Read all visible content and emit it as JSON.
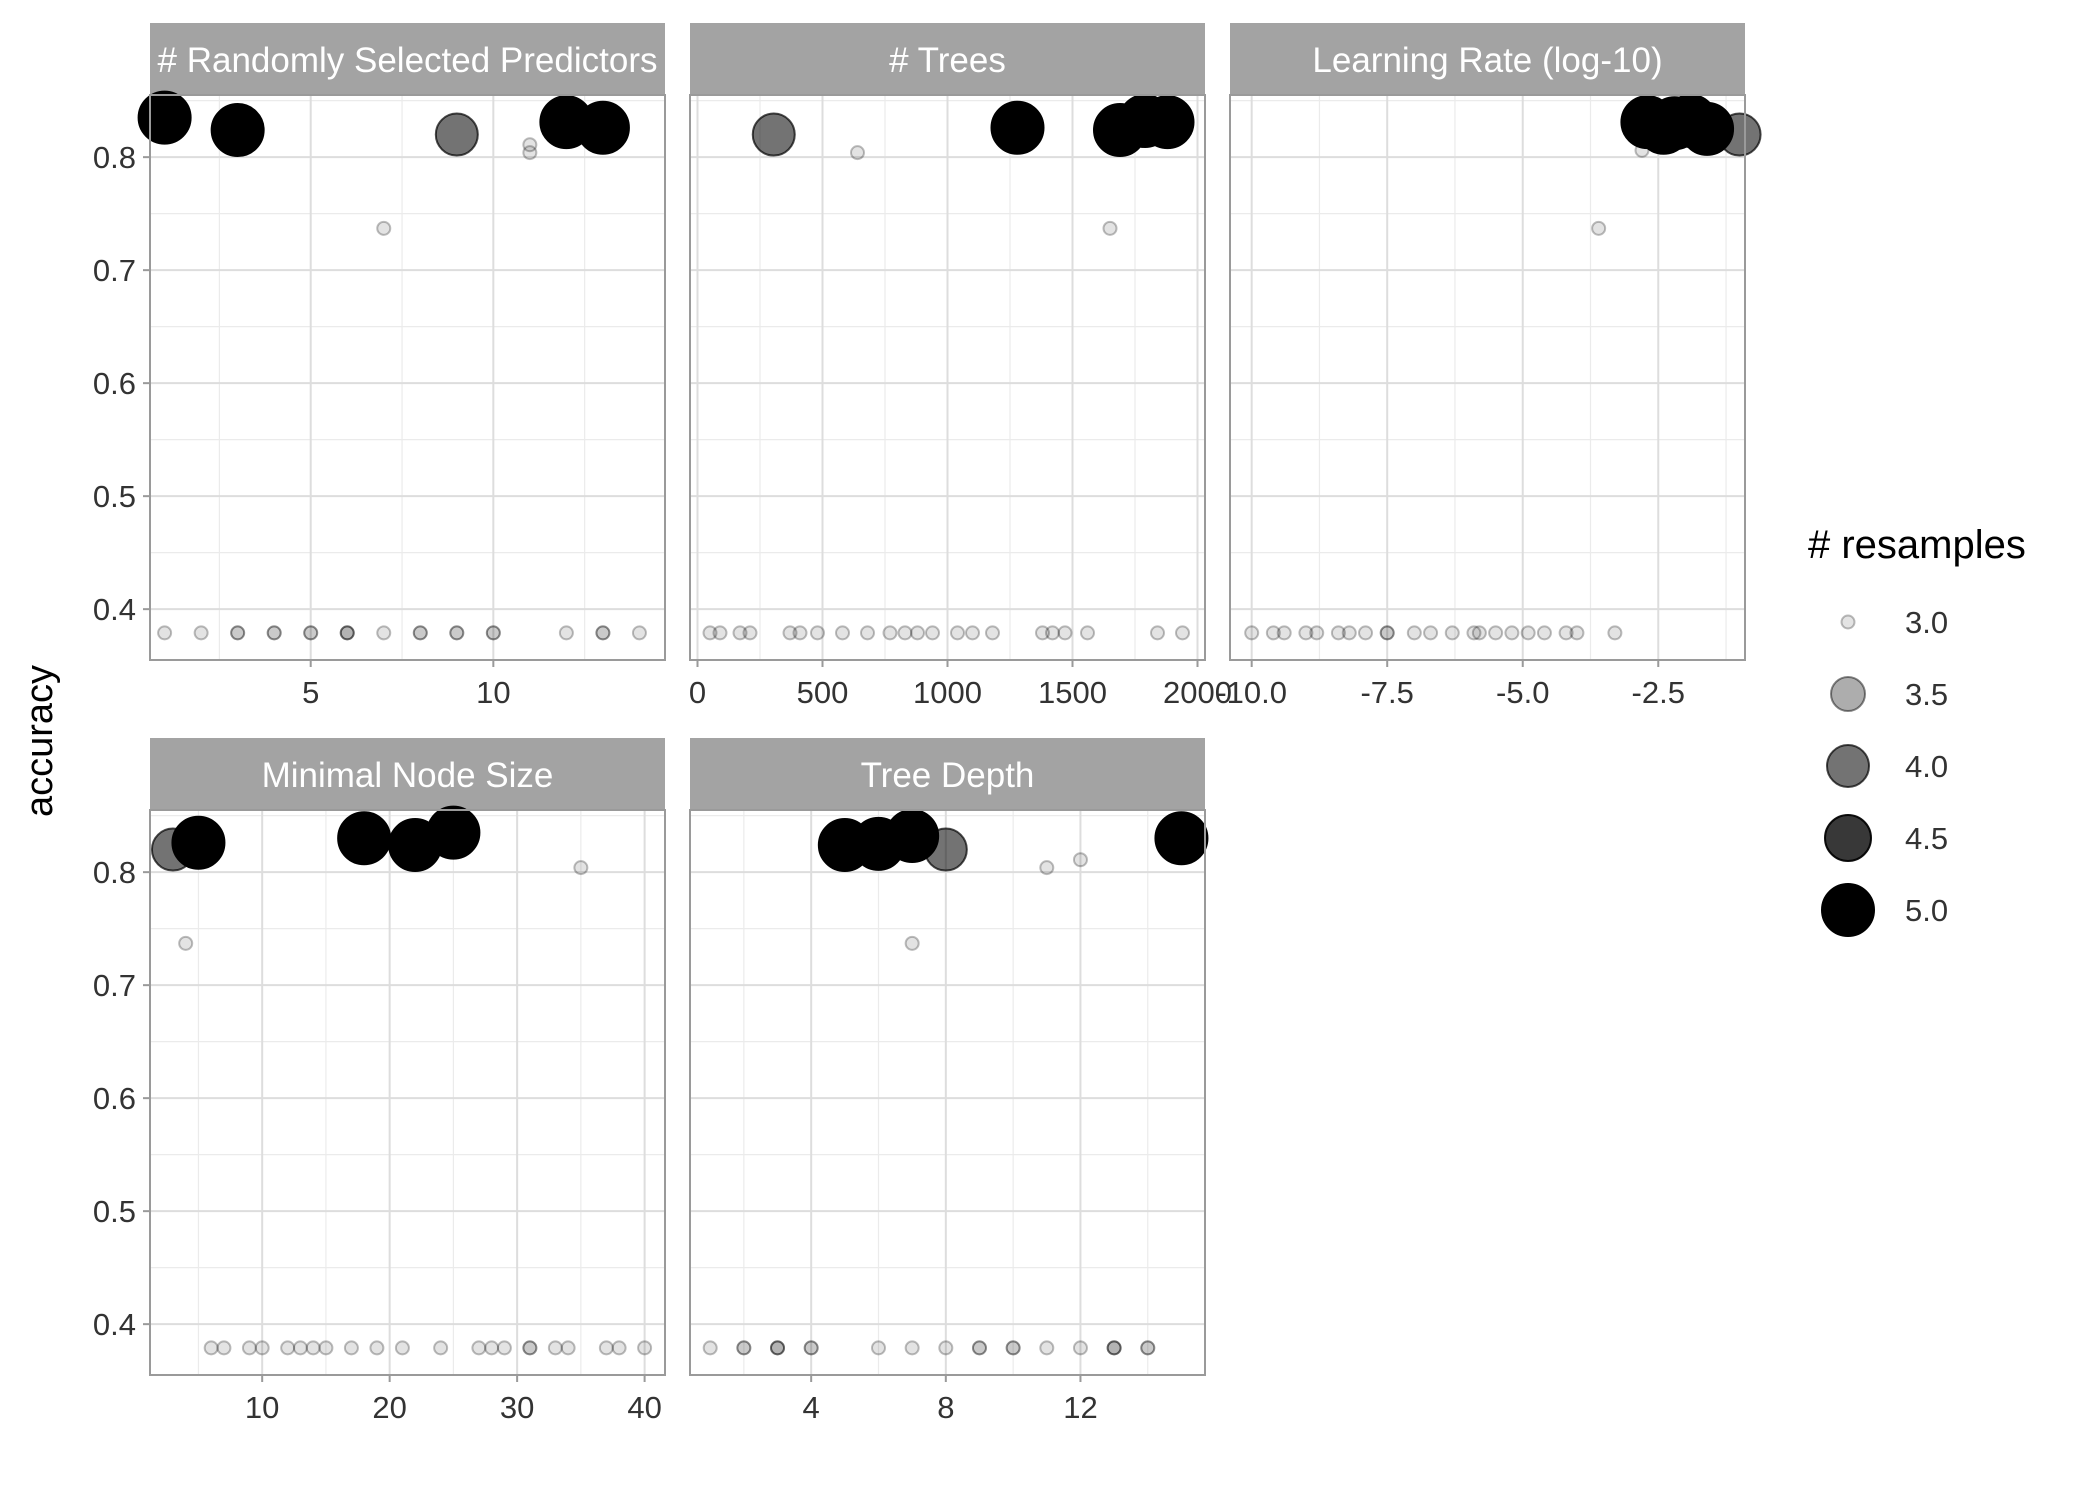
{
  "chart_data": {
    "type": "scatter",
    "ylabel": "accuracy",
    "ylim": [
      0.355,
      0.855
    ],
    "y_ticks": [
      "0.4",
      "0.5",
      "0.6",
      "0.7",
      "0.8"
    ],
    "y_tick_values": [
      0.4,
      0.5,
      0.6,
      0.7,
      0.8
    ],
    "grid": true,
    "legend": {
      "title": "# resamples",
      "position": "right",
      "entries": [
        {
          "label": "3.0",
          "value": 3.0
        },
        {
          "label": "3.5",
          "value": 3.5
        },
        {
          "label": "4.0",
          "value": 4.0
        },
        {
          "label": "4.5",
          "value": 4.5
        },
        {
          "label": "5.0",
          "value": 5.0
        }
      ]
    },
    "colors": {
      "point": "#000000",
      "strip": "#a3a3a3",
      "strip_text": "#ffffff",
      "grid": "#dddddd",
      "border": "#9a9a9a",
      "text": "#333333"
    },
    "panels": [
      {
        "title": "# Randomly Selected Predictors",
        "xlim": [
          0.6,
          14.7
        ],
        "x_ticks": [
          "5",
          "10"
        ],
        "x_tick_values": [
          5,
          10
        ],
        "points": [
          {
            "x": 1,
            "y": 0.835,
            "n": 5
          },
          {
            "x": 3,
            "y": 0.824,
            "n": 5
          },
          {
            "x": 9,
            "y": 0.82,
            "n": 4
          },
          {
            "x": 12,
            "y": 0.831,
            "n": 5
          },
          {
            "x": 13,
            "y": 0.826,
            "n": 5
          },
          {
            "x": 11,
            "y": 0.811,
            "n": 3
          },
          {
            "x": 11,
            "y": 0.804,
            "n": 3
          },
          {
            "x": 7,
            "y": 0.737,
            "n": 3
          },
          {
            "x": 1,
            "y": 0.379,
            "n": 3
          },
          {
            "x": 2,
            "y": 0.379,
            "n": 3
          },
          {
            "x": 3,
            "y": 0.379,
            "n": 3
          },
          {
            "x": 3,
            "y": 0.379,
            "n": 3
          },
          {
            "x": 4,
            "y": 0.379,
            "n": 3
          },
          {
            "x": 4,
            "y": 0.379,
            "n": 3
          },
          {
            "x": 5,
            "y": 0.379,
            "n": 3
          },
          {
            "x": 5,
            "y": 0.379,
            "n": 3
          },
          {
            "x": 6,
            "y": 0.379,
            "n": 3
          },
          {
            "x": 6,
            "y": 0.379,
            "n": 3
          },
          {
            "x": 6,
            "y": 0.379,
            "n": 3
          },
          {
            "x": 7,
            "y": 0.379,
            "n": 3
          },
          {
            "x": 8,
            "y": 0.379,
            "n": 3
          },
          {
            "x": 8,
            "y": 0.379,
            "n": 3
          },
          {
            "x": 9,
            "y": 0.379,
            "n": 3
          },
          {
            "x": 9,
            "y": 0.379,
            "n": 3
          },
          {
            "x": 10,
            "y": 0.379,
            "n": 3
          },
          {
            "x": 10,
            "y": 0.379,
            "n": 3
          },
          {
            "x": 12,
            "y": 0.379,
            "n": 3
          },
          {
            "x": 13,
            "y": 0.379,
            "n": 3
          },
          {
            "x": 13,
            "y": 0.379,
            "n": 3
          },
          {
            "x": 14,
            "y": 0.379,
            "n": 3
          }
        ]
      },
      {
        "title": "# Trees",
        "xlim": [
          -30,
          2030
        ],
        "x_ticks": [
          "0",
          "500",
          "1000",
          "1500",
          "2000"
        ],
        "x_tick_values": [
          0,
          500,
          1000,
          1500,
          2000
        ],
        "points": [
          {
            "x": 305,
            "y": 0.82,
            "n": 4
          },
          {
            "x": 1280,
            "y": 0.826,
            "n": 5
          },
          {
            "x": 1690,
            "y": 0.824,
            "n": 5
          },
          {
            "x": 1790,
            "y": 0.832,
            "n": 5
          },
          {
            "x": 1880,
            "y": 0.831,
            "n": 5
          },
          {
            "x": 640,
            "y": 0.804,
            "n": 3
          },
          {
            "x": 1650,
            "y": 0.737,
            "n": 3
          },
          {
            "x": 50,
            "y": 0.379,
            "n": 3
          },
          {
            "x": 90,
            "y": 0.379,
            "n": 3
          },
          {
            "x": 170,
            "y": 0.379,
            "n": 3
          },
          {
            "x": 210,
            "y": 0.379,
            "n": 3
          },
          {
            "x": 370,
            "y": 0.379,
            "n": 3
          },
          {
            "x": 410,
            "y": 0.379,
            "n": 3
          },
          {
            "x": 480,
            "y": 0.379,
            "n": 3
          },
          {
            "x": 580,
            "y": 0.379,
            "n": 3
          },
          {
            "x": 680,
            "y": 0.379,
            "n": 3
          },
          {
            "x": 770,
            "y": 0.379,
            "n": 3
          },
          {
            "x": 830,
            "y": 0.379,
            "n": 3
          },
          {
            "x": 880,
            "y": 0.379,
            "n": 3
          },
          {
            "x": 940,
            "y": 0.379,
            "n": 3
          },
          {
            "x": 1040,
            "y": 0.379,
            "n": 3
          },
          {
            "x": 1100,
            "y": 0.379,
            "n": 3
          },
          {
            "x": 1180,
            "y": 0.379,
            "n": 3
          },
          {
            "x": 1380,
            "y": 0.379,
            "n": 3
          },
          {
            "x": 1420,
            "y": 0.379,
            "n": 3
          },
          {
            "x": 1470,
            "y": 0.379,
            "n": 3
          },
          {
            "x": 1560,
            "y": 0.379,
            "n": 3
          },
          {
            "x": 1840,
            "y": 0.379,
            "n": 3
          },
          {
            "x": 1940,
            "y": 0.379,
            "n": 3
          }
        ]
      },
      {
        "title": "Learning Rate (log-10)",
        "xlim": [
          -10.4,
          -0.9
        ],
        "x_ticks": [
          "-10.0",
          "-7.5",
          "-5.0",
          "-2.5"
        ],
        "x_tick_values": [
          -10,
          -7.5,
          -5,
          -2.5
        ],
        "points": [
          {
            "x": -2.7,
            "y": 0.831,
            "n": 5
          },
          {
            "x": -2.4,
            "y": 0.826,
            "n": 5
          },
          {
            "x": -2.2,
            "y": 0.83,
            "n": 5
          },
          {
            "x": -1.9,
            "y": 0.832,
            "n": 5
          },
          {
            "x": -1.6,
            "y": 0.825,
            "n": 5
          },
          {
            "x": -1.0,
            "y": 0.82,
            "n": 4
          },
          {
            "x": -2.8,
            "y": 0.806,
            "n": 3
          },
          {
            "x": -3.6,
            "y": 0.737,
            "n": 3
          },
          {
            "x": -10.0,
            "y": 0.379,
            "n": 3
          },
          {
            "x": -9.6,
            "y": 0.379,
            "n": 3
          },
          {
            "x": -9.4,
            "y": 0.379,
            "n": 3
          },
          {
            "x": -9.0,
            "y": 0.379,
            "n": 3
          },
          {
            "x": -8.8,
            "y": 0.379,
            "n": 3
          },
          {
            "x": -8.4,
            "y": 0.379,
            "n": 3
          },
          {
            "x": -8.2,
            "y": 0.379,
            "n": 3
          },
          {
            "x": -7.9,
            "y": 0.379,
            "n": 3
          },
          {
            "x": -7.5,
            "y": 0.379,
            "n": 3
          },
          {
            "x": -7.5,
            "y": 0.379,
            "n": 3
          },
          {
            "x": -7.0,
            "y": 0.379,
            "n": 3
          },
          {
            "x": -6.7,
            "y": 0.379,
            "n": 3
          },
          {
            "x": -6.3,
            "y": 0.379,
            "n": 3
          },
          {
            "x": -5.9,
            "y": 0.379,
            "n": 3
          },
          {
            "x": -5.8,
            "y": 0.379,
            "n": 3
          },
          {
            "x": -5.5,
            "y": 0.379,
            "n": 3
          },
          {
            "x": -5.2,
            "y": 0.379,
            "n": 3
          },
          {
            "x": -4.9,
            "y": 0.379,
            "n": 3
          },
          {
            "x": -4.6,
            "y": 0.379,
            "n": 3
          },
          {
            "x": -4.2,
            "y": 0.379,
            "n": 3
          },
          {
            "x": -4.0,
            "y": 0.379,
            "n": 3
          },
          {
            "x": -3.3,
            "y": 0.379,
            "n": 3
          }
        ]
      },
      {
        "title": "Minimal Node Size",
        "xlim": [
          1.2,
          41.6
        ],
        "x_ticks": [
          "10",
          "20",
          "30",
          "40"
        ],
        "x_tick_values": [
          10,
          20,
          30,
          40
        ],
        "points": [
          {
            "x": 3,
            "y": 0.82,
            "n": 4
          },
          {
            "x": 5,
            "y": 0.826,
            "n": 5
          },
          {
            "x": 18,
            "y": 0.83,
            "n": 5
          },
          {
            "x": 22,
            "y": 0.824,
            "n": 5
          },
          {
            "x": 25,
            "y": 0.835,
            "n": 5
          },
          {
            "x": 35,
            "y": 0.804,
            "n": 3
          },
          {
            "x": 4,
            "y": 0.737,
            "n": 3
          },
          {
            "x": 6,
            "y": 0.379,
            "n": 3
          },
          {
            "x": 7,
            "y": 0.379,
            "n": 3
          },
          {
            "x": 9,
            "y": 0.379,
            "n": 3
          },
          {
            "x": 10,
            "y": 0.379,
            "n": 3
          },
          {
            "x": 12,
            "y": 0.379,
            "n": 3
          },
          {
            "x": 13,
            "y": 0.379,
            "n": 3
          },
          {
            "x": 14,
            "y": 0.379,
            "n": 3
          },
          {
            "x": 15,
            "y": 0.379,
            "n": 3
          },
          {
            "x": 17,
            "y": 0.379,
            "n": 3
          },
          {
            "x": 19,
            "y": 0.379,
            "n": 3
          },
          {
            "x": 21,
            "y": 0.379,
            "n": 3
          },
          {
            "x": 24,
            "y": 0.379,
            "n": 3
          },
          {
            "x": 27,
            "y": 0.379,
            "n": 3
          },
          {
            "x": 28,
            "y": 0.379,
            "n": 3
          },
          {
            "x": 29,
            "y": 0.379,
            "n": 3
          },
          {
            "x": 31,
            "y": 0.379,
            "n": 3
          },
          {
            "x": 31,
            "y": 0.379,
            "n": 3
          },
          {
            "x": 33,
            "y": 0.379,
            "n": 3
          },
          {
            "x": 34,
            "y": 0.379,
            "n": 3
          },
          {
            "x": 37,
            "y": 0.379,
            "n": 3
          },
          {
            "x": 38,
            "y": 0.379,
            "n": 3
          },
          {
            "x": 40,
            "y": 0.379,
            "n": 3
          }
        ]
      },
      {
        "title": "Tree Depth",
        "xlim": [
          0.4,
          15.7
        ],
        "x_ticks": [
          "4",
          "8",
          "12"
        ],
        "x_tick_values": [
          4,
          8,
          12
        ],
        "points": [
          {
            "x": 5,
            "y": 0.824,
            "n": 5
          },
          {
            "x": 6,
            "y": 0.825,
            "n": 5
          },
          {
            "x": 7,
            "y": 0.832,
            "n": 5
          },
          {
            "x": 8,
            "y": 0.82,
            "n": 4
          },
          {
            "x": 15,
            "y": 0.83,
            "n": 5
          },
          {
            "x": 11,
            "y": 0.804,
            "n": 3
          },
          {
            "x": 12,
            "y": 0.811,
            "n": 3
          },
          {
            "x": 7,
            "y": 0.737,
            "n": 3
          },
          {
            "x": 1,
            "y": 0.379,
            "n": 3
          },
          {
            "x": 2,
            "y": 0.379,
            "n": 3
          },
          {
            "x": 2,
            "y": 0.379,
            "n": 3
          },
          {
            "x": 3,
            "y": 0.379,
            "n": 3
          },
          {
            "x": 3,
            "y": 0.379,
            "n": 3
          },
          {
            "x": 3,
            "y": 0.379,
            "n": 3
          },
          {
            "x": 4,
            "y": 0.379,
            "n": 3
          },
          {
            "x": 4,
            "y": 0.379,
            "n": 3
          },
          {
            "x": 6,
            "y": 0.379,
            "n": 3
          },
          {
            "x": 7,
            "y": 0.379,
            "n": 3
          },
          {
            "x": 8,
            "y": 0.379,
            "n": 3
          },
          {
            "x": 9,
            "y": 0.379,
            "n": 3
          },
          {
            "x": 9,
            "y": 0.379,
            "n": 3
          },
          {
            "x": 10,
            "y": 0.379,
            "n": 3
          },
          {
            "x": 10,
            "y": 0.379,
            "n": 3
          },
          {
            "x": 11,
            "y": 0.379,
            "n": 3
          },
          {
            "x": 12,
            "y": 0.379,
            "n": 3
          },
          {
            "x": 13,
            "y": 0.379,
            "n": 3
          },
          {
            "x": 13,
            "y": 0.379,
            "n": 3
          },
          {
            "x": 13,
            "y": 0.379,
            "n": 3
          },
          {
            "x": 14,
            "y": 0.379,
            "n": 3
          },
          {
            "x": 14,
            "y": 0.379,
            "n": 3
          }
        ]
      }
    ]
  }
}
